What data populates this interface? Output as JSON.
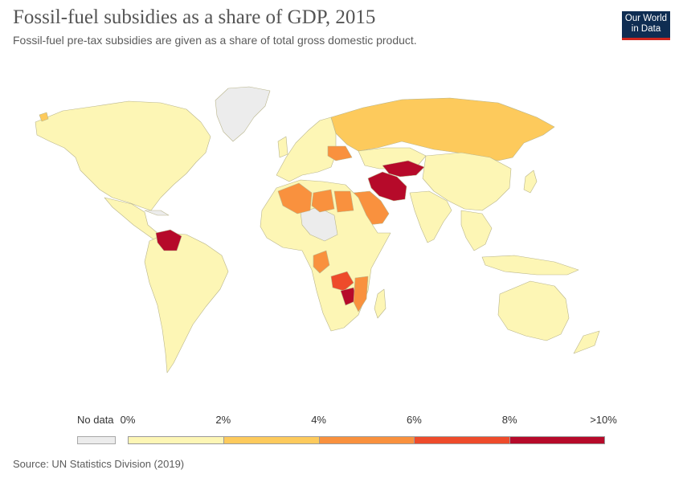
{
  "header": {
    "title": "Fossil-fuel subsidies as a share of GDP, 2015",
    "subtitle": "Fossil-fuel pre-tax subsidies are given as a share of total gross domestic product.",
    "logo_line1": "Our World",
    "logo_line2": "in Data"
  },
  "legend": {
    "no_data_label": "No data",
    "no_data_color": "#ececec",
    "tick_labels": [
      "0%",
      "2%",
      "4%",
      "6%",
      "8%",
      ">10%"
    ],
    "bins": [
      {
        "from": 0,
        "to": 2,
        "color": "#fdf6b5"
      },
      {
        "from": 2,
        "to": 4,
        "color": "#fdca5c"
      },
      {
        "from": 4,
        "to": 6,
        "color": "#f9913e"
      },
      {
        "from": 6,
        "to": 8,
        "color": "#ee4b2b"
      },
      {
        "from": 8,
        "to": 10,
        "color": "#b60a2a"
      }
    ]
  },
  "map_colors": {
    "ocean": "#ffffff",
    "border": "#c8c8a0",
    "lowest": "#fdf6b5",
    "no_data": "#ececec"
  },
  "map_highlights": {
    "Iran": ">10%",
    "Venezuela": ">10%",
    "Turkmenistan": ">10%",
    "Zimbabwe": "8-10%",
    "Zambia": "6-8%",
    "Malawi": "6-8%",
    "Mozambique": "4-6%",
    "Libya": "4-6%",
    "Algeria": "4-6%",
    "Egypt": "4-6%",
    "Saudi Arabia": "4-6%",
    "Ukraine": "4-6%",
    "Uzbekistan": "4-6%",
    "Angola": "4-6%",
    "Russia": "2-4%",
    "Kazakhstan": "0-2%",
    "Ghana": "2-4%",
    "Nigeria": "2-4%"
  },
  "source": "Source: UN Statistics Division (2019)"
}
